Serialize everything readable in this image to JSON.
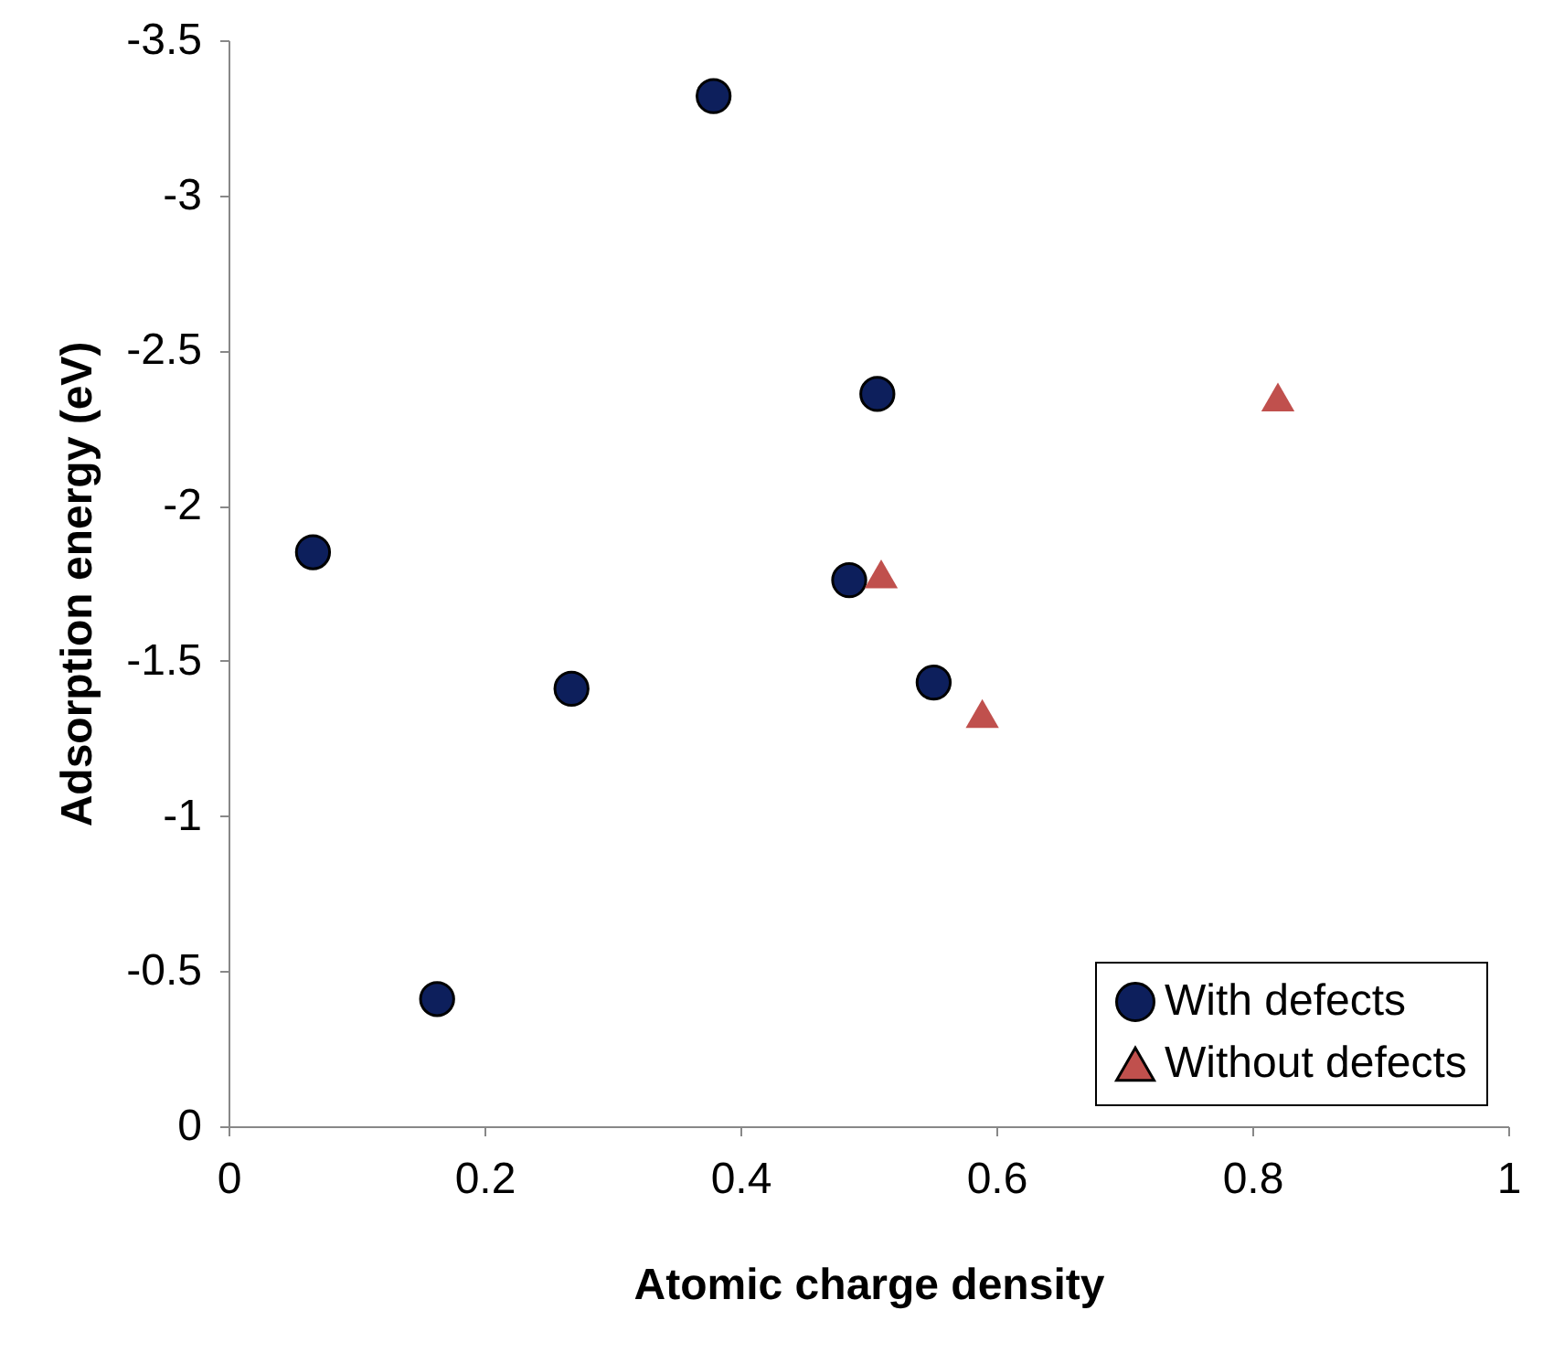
{
  "chart_data": {
    "type": "scatter",
    "xlabel": "Atomic charge density",
    "ylabel": "Adsorption energy (eV)",
    "xlim": [
      0,
      1
    ],
    "xticks": [
      0,
      0.2,
      0.4,
      0.6,
      0.8,
      1
    ],
    "ylim": [
      0,
      -3.5
    ],
    "yticks": [
      0,
      -0.5,
      -1,
      -1.5,
      -2,
      -2.5,
      -3,
      -3.5
    ],
    "grid": false,
    "legend": "bottom right",
    "series": [
      {
        "name": "With defects",
        "color": "#0d1f5c",
        "marker": "circle",
        "x": [
          0.066,
          0.163,
          0.268,
          0.379,
          0.485,
          0.507,
          0.551
        ],
        "values": [
          -1.85,
          -0.41,
          -1.41,
          -3.32,
          -1.76,
          -2.36,
          -1.43
        ]
      },
      {
        "name": "Without defects",
        "color": "#c0504d",
        "marker": "triangle",
        "x": [
          0.51,
          0.589,
          0.82
        ],
        "values": [
          -1.78,
          -1.33,
          -2.35
        ]
      }
    ]
  }
}
